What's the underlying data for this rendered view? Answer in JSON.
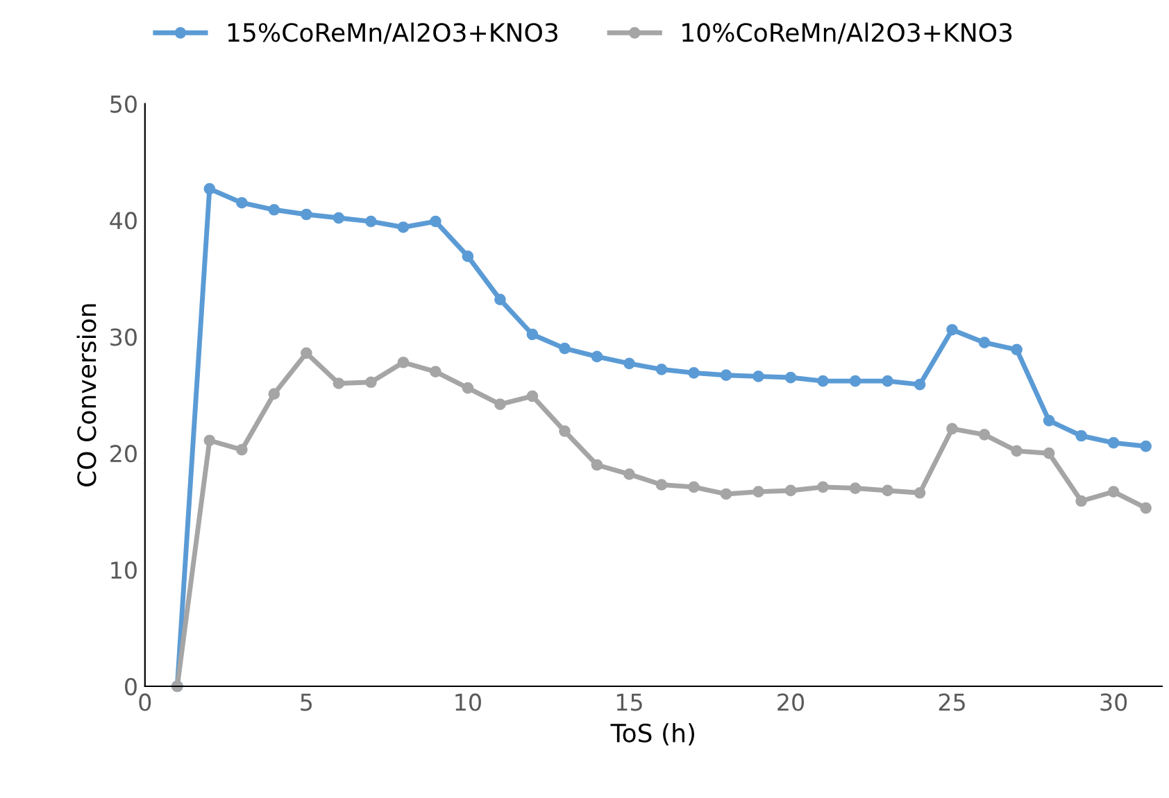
{
  "chart_data": {
    "type": "line",
    "xlabel": "ToS (h)",
    "ylabel": "CO Conversion",
    "x": [
      1,
      2,
      3,
      4,
      5,
      6,
      7,
      8,
      9,
      10,
      11,
      12,
      13,
      14,
      15,
      16,
      17,
      18,
      19,
      20,
      21,
      22,
      23,
      24,
      25,
      26,
      27,
      28,
      29,
      30,
      31
    ],
    "series": [
      {
        "name": "15%CoReMn/Al2O3+KNO3",
        "color": "#5b9bd5",
        "values": [
          0,
          42.7,
          41.5,
          40.9,
          40.5,
          40.2,
          39.9,
          39.4,
          39.9,
          36.9,
          33.2,
          30.2,
          29.0,
          28.3,
          27.7,
          27.2,
          26.9,
          26.7,
          26.6,
          26.5,
          26.2,
          26.2,
          26.2,
          25.9,
          30.6,
          29.5,
          28.9,
          22.8,
          21.5,
          20.9,
          20.6
        ]
      },
      {
        "name": "10%CoReMn/Al2O3+KNO3",
        "color": "#a5a5a5",
        "values": [
          0,
          21.1,
          20.3,
          25.1,
          28.6,
          26.0,
          26.1,
          27.8,
          27.0,
          25.6,
          24.2,
          24.9,
          21.9,
          19.0,
          18.2,
          17.3,
          17.1,
          16.5,
          16.7,
          16.8,
          17.1,
          17.0,
          16.8,
          16.6,
          22.1,
          21.6,
          20.2,
          20.0,
          15.9,
          16.7,
          15.3
        ]
      }
    ],
    "xlim": [
      0,
      31.5
    ],
    "xticks": [
      0,
      5,
      10,
      15,
      20,
      25,
      30
    ],
    "ylim": [
      0,
      50
    ],
    "yticks": [
      0,
      10,
      20,
      30,
      40,
      50
    ],
    "grid": false,
    "legend": "top",
    "marker": "circle",
    "line_style": "solid"
  }
}
